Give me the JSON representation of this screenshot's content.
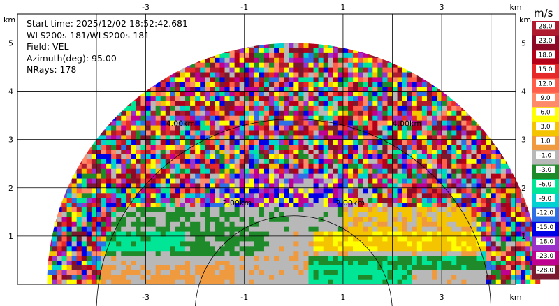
{
  "info": {
    "start_time": "Start time: 2025/12/02 18:52:42.681",
    "site": "WLS200s-181/WLS200s-181",
    "field": "Field: VEL",
    "azimuth": "Azimuth(deg): 95.00",
    "nrays": "NRays: 178"
  },
  "chart_data": {
    "type": "heatmap",
    "xlabel": "km",
    "ylabel": "km",
    "xlim": [
      -5.6,
      4.5
    ],
    "ylim": [
      0,
      5.6
    ],
    "x_ticks": [
      "-3",
      "-1",
      "1",
      "3"
    ],
    "x_tick_values": [
      -3,
      -1,
      1,
      3
    ],
    "y_ticks": [
      "1",
      "2",
      "3",
      "4",
      "5"
    ],
    "y_tick_values": [
      1,
      2,
      3,
      4,
      5
    ],
    "grid": true,
    "range_rings": [
      {
        "radius": 2,
        "label": "2.00km"
      },
      {
        "radius": 4,
        "label": "4.00km"
      }
    ],
    "max_range_km": 5,
    "colorbar": {
      "title": "m/s",
      "labels": [
        "28.0",
        "23.0",
        "18.0",
        "15.0",
        "12.0",
        "9.0",
        "6.0",
        "3.0",
        "1.0",
        "-1.0",
        "-3.0",
        "-6.0",
        "-9.0",
        "-12.0",
        "-15.0",
        "-18.0",
        "-23.0",
        "-28.0"
      ],
      "colors": [
        "#b01a2e",
        "#8c0a28",
        "#b40018",
        "#e62a2a",
        "#ff5e4a",
        "#ff8a6a",
        "#ffff00",
        "#f5c400",
        "#f09a40",
        "#b8b8b8",
        "#1f8a2a",
        "#00e696",
        "#00d2d2",
        "#2f6fe6",
        "#0000e6",
        "#9933cc",
        "#c00090",
        "#7a1a30"
      ]
    }
  }
}
